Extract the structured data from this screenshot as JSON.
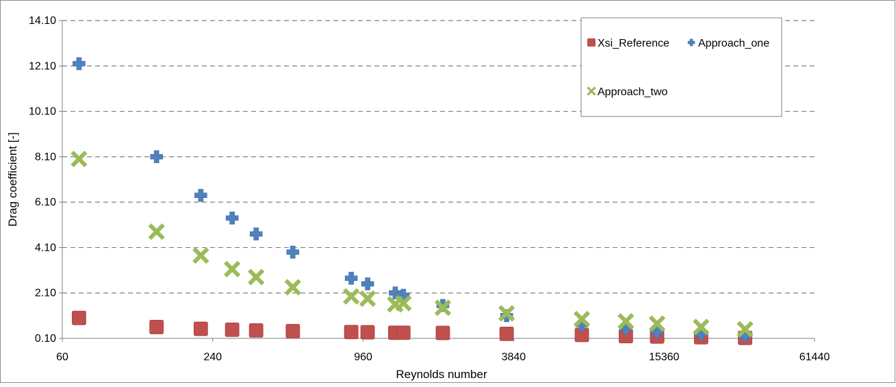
{
  "chart_data": {
    "type": "scatter",
    "xlabel": "Reynolds number",
    "ylabel": "Drag coefficient [-]",
    "x_scale": "log",
    "xlim": [
      60,
      61440
    ],
    "ylim": [
      0.1,
      14.1
    ],
    "x_ticks": [
      60,
      240,
      960,
      3840,
      15360,
      61440
    ],
    "x_tick_labels": [
      "60",
      "240",
      "960",
      "3840",
      "15360",
      "61440"
    ],
    "y_ticks": [
      0.1,
      2.1,
      4.1,
      6.1,
      8.1,
      10.1,
      12.1,
      14.1
    ],
    "y_tick_labels": [
      "0.10",
      "2.10",
      "4.10",
      "6.10",
      "8.10",
      "10.10",
      "12.10",
      "14.10"
    ],
    "grid": "horizontal-dashed",
    "legend_position": "top-right",
    "series": [
      {
        "name": "Xsi_Reference",
        "marker": "square",
        "color": "#c0504d",
        "x": [
          70,
          143,
          215,
          287,
          358,
          502,
          860,
          1000,
          1290,
          1390,
          2000,
          3600,
          7200,
          10800,
          14400,
          21600,
          32400
        ],
        "y": [
          1.0,
          0.6,
          0.52,
          0.48,
          0.45,
          0.42,
          0.38,
          0.37,
          0.35,
          0.35,
          0.34,
          0.3,
          0.25,
          0.2,
          0.18,
          0.15,
          0.12
        ]
      },
      {
        "name": "Approach_one",
        "marker": "plus",
        "color": "#4f81bd",
        "x": [
          70,
          143,
          215,
          287,
          358,
          502,
          860,
          1000,
          1290,
          1390,
          2000,
          3600,
          7200,
          10800,
          14400,
          21600,
          32400
        ],
        "y": [
          12.2,
          8.1,
          6.4,
          5.4,
          4.7,
          3.9,
          2.75,
          2.5,
          2.1,
          2.0,
          1.55,
          1.1,
          0.7,
          0.55,
          0.4,
          0.3,
          0.22
        ]
      },
      {
        "name": "Approach_two",
        "marker": "x",
        "color": "#9bbb59",
        "x": [
          70,
          143,
          215,
          287,
          358,
          502,
          860,
          1000,
          1290,
          1390,
          2000,
          3600,
          7200,
          10800,
          14400,
          21600,
          32400
        ],
        "y": [
          8.0,
          4.8,
          3.75,
          3.15,
          2.8,
          2.35,
          1.95,
          1.85,
          1.6,
          1.65,
          1.45,
          1.2,
          0.95,
          0.85,
          0.75,
          0.6,
          0.5
        ]
      }
    ]
  }
}
